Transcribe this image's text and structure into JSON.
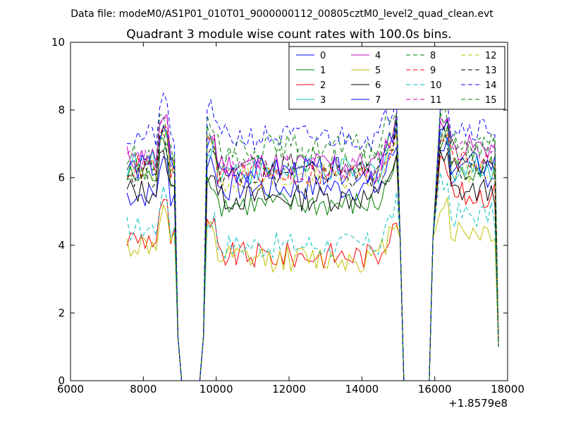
{
  "header": {
    "suptitle": "Data file: modeM0/AS1P01_010T01_9000000112_00805cztM0_level2_quad_clean.evt"
  },
  "chart_data": {
    "type": "line",
    "title": "Quadrant 3 module wise count rates with 100.0s bins.",
    "xlabel": "",
    "ylabel": "",
    "x_offset_label": "+1.8579e8",
    "xlim": [
      6000,
      18000
    ],
    "ylim": [
      0,
      10
    ],
    "x_ticks": [
      6000,
      8000,
      10000,
      12000,
      14000,
      16000,
      18000
    ],
    "y_ticks": [
      0,
      2,
      4,
      6,
      8,
      10
    ],
    "legend": {
      "placement": "upper-right",
      "ncol": 4
    },
    "segments": [
      {
        "x_start": 7550,
        "x_end": 8850,
        "n": 14
      },
      {
        "x_start": 9750,
        "x_end": 14950,
        "n": 53
      },
      {
        "x_start": 16150,
        "x_end": 17650,
        "n": 16
      }
    ],
    "gap_points": [
      [
        8950,
        1.3
      ],
      [
        9050,
        0
      ],
      [
        9550,
        0
      ],
      [
        9650,
        1.3
      ],
      [
        15050,
        4.2
      ],
      [
        15150,
        0
      ],
      [
        15850,
        0
      ],
      [
        15950,
        4.2
      ],
      [
        17750,
        1.0
      ]
    ],
    "series": [
      {
        "name": "0",
        "color": "#0000ff",
        "dash": false,
        "levels": [
          5.5,
          5.7,
          6.1
        ]
      },
      {
        "name": "1",
        "color": "#008000",
        "dash": false,
        "levels": [
          6.0,
          5.2,
          6.3
        ]
      },
      {
        "name": "2",
        "color": "#ff0000",
        "dash": false,
        "levels": [
          4.2,
          3.7,
          5.5
        ]
      },
      {
        "name": "3",
        "color": "#00bfbf",
        "dash": false,
        "levels": [
          6.4,
          6.2,
          6.3
        ]
      },
      {
        "name": "4",
        "color": "#bf00bf",
        "dash": false,
        "levels": [
          6.6,
          6.4,
          6.9
        ]
      },
      {
        "name": "5",
        "color": "#bfbf00",
        "dash": false,
        "levels": [
          4.0,
          3.6,
          4.4
        ]
      },
      {
        "name": "6",
        "color": "#000000",
        "dash": false,
        "levels": [
          5.6,
          5.4,
          5.6
        ]
      },
      {
        "name": "7",
        "color": "#0000ff",
        "dash": false,
        "levels": [
          6.3,
          6.2,
          6.4
        ]
      },
      {
        "name": "8",
        "color": "#008000",
        "dash": true,
        "levels": [
          6.6,
          6.9,
          7.0
        ]
      },
      {
        "name": "9",
        "color": "#ff0000",
        "dash": true,
        "levels": [
          6.3,
          6.1,
          6.5
        ]
      },
      {
        "name": "10",
        "color": "#00bfbf",
        "dash": true,
        "levels": [
          4.5,
          4.0,
          4.9
        ]
      },
      {
        "name": "11",
        "color": "#bf00bf",
        "dash": true,
        "levels": [
          6.5,
          6.3,
          6.7
        ]
      },
      {
        "name": "12",
        "color": "#bfbf00",
        "dash": true,
        "levels": [
          6.2,
          6.0,
          6.2
        ]
      },
      {
        "name": "13",
        "color": "#000000",
        "dash": true,
        "levels": [
          6.1,
          6.1,
          6.3
        ]
      },
      {
        "name": "14",
        "color": "#0000ff",
        "dash": true,
        "levels": [
          7.2,
          7.2,
          7.5
        ]
      },
      {
        "name": "15",
        "color": "#008000",
        "dash": true,
        "levels": [
          6.3,
          6.5,
          6.8
        ]
      }
    ]
  }
}
